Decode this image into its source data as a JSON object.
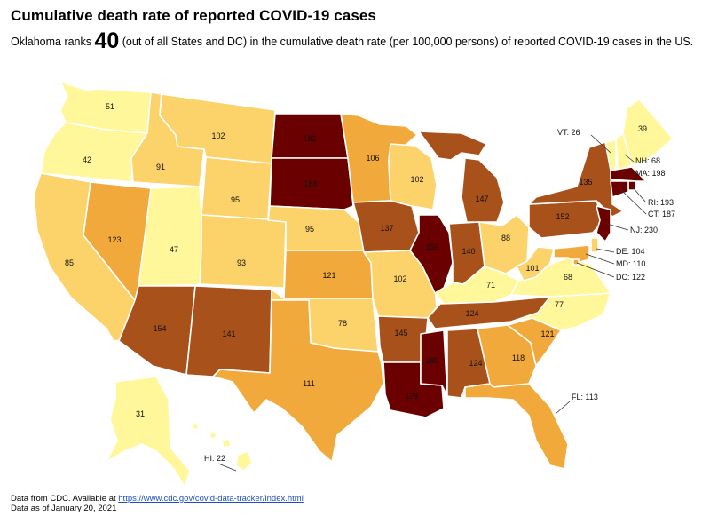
{
  "title": "Cumulative death rate of reported COVID-19 cases",
  "subtitle": {
    "prefix": "Oklahoma ranks ",
    "rank": "40",
    "suffix": " (out of all States and DC) in the cumulative death rate (per 100,000 persons) of reported COVID-19 cases in the US."
  },
  "colors": {
    "yellow": "#fff799",
    "light_orange": "#fcd26b",
    "orange": "#f2a93b",
    "brown": "#a9511b",
    "dark_red": "#6b0000"
  },
  "states": [
    {
      "abbr": "WA",
      "value": 51,
      "color": "yellow"
    },
    {
      "abbr": "OR",
      "value": 42,
      "color": "yellow"
    },
    {
      "abbr": "CA",
      "value": 85,
      "color": "light_orange"
    },
    {
      "abbr": "NV",
      "value": 123,
      "color": "orange"
    },
    {
      "abbr": "ID",
      "value": 91,
      "color": "light_orange"
    },
    {
      "abbr": "MT",
      "value": 102,
      "color": "light_orange"
    },
    {
      "abbr": "WY",
      "value": 95,
      "color": "light_orange"
    },
    {
      "abbr": "UT",
      "value": 47,
      "color": "yellow"
    },
    {
      "abbr": "AZ",
      "value": 154,
      "color": "brown"
    },
    {
      "abbr": "CO",
      "value": 93,
      "color": "light_orange"
    },
    {
      "abbr": "NM",
      "value": 141,
      "color": "brown"
    },
    {
      "abbr": "ND",
      "value": 182,
      "color": "dark_red"
    },
    {
      "abbr": "SD",
      "value": 188,
      "color": "dark_red"
    },
    {
      "abbr": "NE",
      "value": 95,
      "color": "light_orange"
    },
    {
      "abbr": "KS",
      "value": 121,
      "color": "orange"
    },
    {
      "abbr": "OK",
      "value": 78,
      "color": "light_orange"
    },
    {
      "abbr": "TX",
      "value": 111,
      "color": "orange"
    },
    {
      "abbr": "MN",
      "value": 106,
      "color": "orange"
    },
    {
      "abbr": "IA",
      "value": 137,
      "color": "brown"
    },
    {
      "abbr": "MO",
      "value": 102,
      "color": "light_orange"
    },
    {
      "abbr": "AR",
      "value": 145,
      "color": "brown"
    },
    {
      "abbr": "LA",
      "value": 179,
      "color": "dark_red"
    },
    {
      "abbr": "WI",
      "value": 102,
      "color": "light_orange"
    },
    {
      "abbr": "IL",
      "value": 159,
      "color": "dark_red"
    },
    {
      "abbr": "MI",
      "value": 147,
      "color": "brown"
    },
    {
      "abbr": "IN",
      "value": 140,
      "color": "brown"
    },
    {
      "abbr": "OH",
      "value": 88,
      "color": "light_orange"
    },
    {
      "abbr": "KY",
      "value": 71,
      "color": "yellow"
    },
    {
      "abbr": "TN",
      "value": 124,
      "color": "brown"
    },
    {
      "abbr": "MS",
      "value": 189,
      "color": "dark_red"
    },
    {
      "abbr": "AL",
      "value": 124,
      "color": "brown"
    },
    {
      "abbr": "GA",
      "value": 118,
      "color": "orange"
    },
    {
      "abbr": "FL",
      "value": 113,
      "color": "orange"
    },
    {
      "abbr": "SC",
      "value": 121,
      "color": "orange"
    },
    {
      "abbr": "NC",
      "value": 77,
      "color": "yellow"
    },
    {
      "abbr": "VA",
      "value": 68,
      "color": "yellow"
    },
    {
      "abbr": "WV",
      "value": 101,
      "color": "light_orange"
    },
    {
      "abbr": "PA",
      "value": 152,
      "color": "brown"
    },
    {
      "abbr": "NY",
      "value": 135,
      "color": "brown"
    },
    {
      "abbr": "VT",
      "value": 26,
      "color": "yellow"
    },
    {
      "abbr": "NH",
      "value": 68,
      "color": "yellow"
    },
    {
      "abbr": "ME",
      "value": 39,
      "color": "yellow"
    },
    {
      "abbr": "MA",
      "value": 198,
      "color": "dark_red"
    },
    {
      "abbr": "RI",
      "value": 193,
      "color": "dark_red"
    },
    {
      "abbr": "CT",
      "value": 187,
      "color": "dark_red"
    },
    {
      "abbr": "NJ",
      "value": 230,
      "color": "dark_red"
    },
    {
      "abbr": "DE",
      "value": 104,
      "color": "light_orange"
    },
    {
      "abbr": "MD",
      "value": 110,
      "color": "orange"
    },
    {
      "abbr": "DC",
      "value": 122,
      "color": "orange"
    },
    {
      "abbr": "AK",
      "value": 31,
      "color": "yellow"
    },
    {
      "abbr": "HI",
      "value": 22,
      "color": "yellow"
    }
  ],
  "footnote": {
    "source_prefix": "Data from CDC. Available at ",
    "source_link": "https://www.cdc.gov/covid-data-tracker/index.html",
    "date": "Data as of January 20, 2021"
  }
}
